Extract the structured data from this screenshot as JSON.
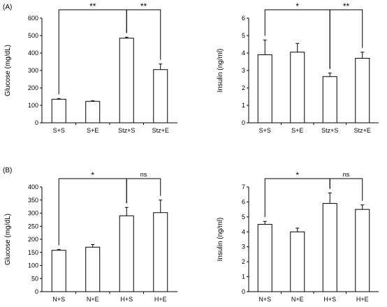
{
  "figure": {
    "panel_labels": [
      "(A)",
      "(B)"
    ]
  },
  "chart_data": [
    {
      "id": "A-glucose",
      "type": "bar",
      "categories": [
        "S+S",
        "S+E",
        "Stz+S",
        "Stz+E"
      ],
      "values": [
        135,
        123,
        485,
        305
      ],
      "errors": [
        4,
        4,
        6,
        32
      ],
      "ylabel": "Glucose (mg/dL)",
      "xlabel": "",
      "ylim": [
        0,
        600
      ],
      "yticks": [
        0,
        100,
        200,
        300,
        400,
        500,
        600
      ],
      "grid": false,
      "significance": [
        {
          "from": 0,
          "to": 2,
          "label": "**"
        },
        {
          "from": 2,
          "to": 3,
          "label": "**"
        }
      ]
    },
    {
      "id": "A-insulin",
      "type": "bar",
      "categories": [
        "S+S",
        "S+E",
        "Stz+S",
        "Stz+E"
      ],
      "values": [
        3.9,
        4.05,
        2.65,
        3.7
      ],
      "errors": [
        0.85,
        0.5,
        0.2,
        0.35
      ],
      "ylabel": "Insulin (ng/ml)",
      "xlabel": "",
      "ylim": [
        0,
        6
      ],
      "yticks": [
        0,
        1,
        2,
        3,
        4,
        5,
        6
      ],
      "grid": false,
      "significance": [
        {
          "from": 0,
          "to": 2,
          "label": "*"
        },
        {
          "from": 2,
          "to": 3,
          "label": "**"
        }
      ]
    },
    {
      "id": "B-glucose",
      "type": "bar",
      "categories": [
        "N+S",
        "N+E",
        "H+S",
        "H+E"
      ],
      "values": [
        158,
        170,
        290,
        302
      ],
      "errors": [
        3,
        10,
        32,
        48
      ],
      "ylabel": "Glucose (mg/dL)",
      "xlabel": "",
      "ylim": [
        0,
        400
      ],
      "yticks": [
        0,
        50,
        100,
        150,
        200,
        250,
        300,
        350,
        400
      ],
      "grid": false,
      "significance": [
        {
          "from": 0,
          "to": 2,
          "label": "*"
        },
        {
          "from": 2,
          "to": 3,
          "label": "ns"
        }
      ]
    },
    {
      "id": "B-insulin",
      "type": "bar",
      "categories": [
        "N+S",
        "N+E",
        "H+S",
        "H+E"
      ],
      "values": [
        4.5,
        4.0,
        5.9,
        5.5
      ],
      "errors": [
        0.2,
        0.25,
        0.7,
        0.3
      ],
      "ylabel": "Insulin (ng/ml)",
      "xlabel": "",
      "ylim": [
        0,
        7
      ],
      "yticks": [
        0,
        1,
        2,
        3,
        4,
        5,
        6,
        7
      ],
      "grid": false,
      "significance": [
        {
          "from": 0,
          "to": 2,
          "label": "*"
        },
        {
          "from": 2,
          "to": 3,
          "label": "ns"
        }
      ]
    }
  ]
}
